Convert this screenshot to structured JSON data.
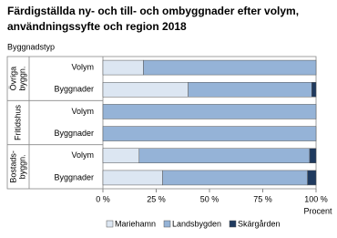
{
  "chart_data": {
    "type": "stacked-barh",
    "title": [
      "Färdigställda ny- och till- och ombyggnader efter volym,",
      "användningssyfte och region 2018"
    ],
    "y_label": "Byggnadstyp",
    "x_label": "Procent",
    "groups": [
      {
        "name": [
          "Övriga",
          "byggn."
        ],
        "categories": [
          "Volym",
          "Byggnader"
        ]
      },
      {
        "name": [
          "Fritidshus"
        ],
        "categories": [
          "Volym",
          "Byggnader"
        ]
      },
      {
        "name": [
          "Bostads-",
          "byggn."
        ],
        "categories": [
          "Volym",
          "Byggnader"
        ]
      }
    ],
    "series": [
      {
        "name": "Mariehamn",
        "color": "#dce6f2",
        "values": [
          19,
          40,
          0,
          0,
          17,
          28
        ]
      },
      {
        "name": "Landsbygden",
        "color": "#95b3d7",
        "values": [
          81,
          58,
          100,
          100,
          80,
          68
        ]
      },
      {
        "name": "Skärgården",
        "color": "#1f3a5f",
        "values": [
          0,
          2,
          0,
          0,
          3,
          4
        ]
      }
    ],
    "xlim": [
      0,
      100
    ],
    "xticks": [
      {
        "value": 0,
        "label": "0 %"
      },
      {
        "value": 25,
        "label": "25 %"
      },
      {
        "value": 50,
        "label": "50 %"
      },
      {
        "value": 75,
        "label": "75 %"
      },
      {
        "value": 100,
        "label": "100 %"
      }
    ],
    "grid": false
  }
}
